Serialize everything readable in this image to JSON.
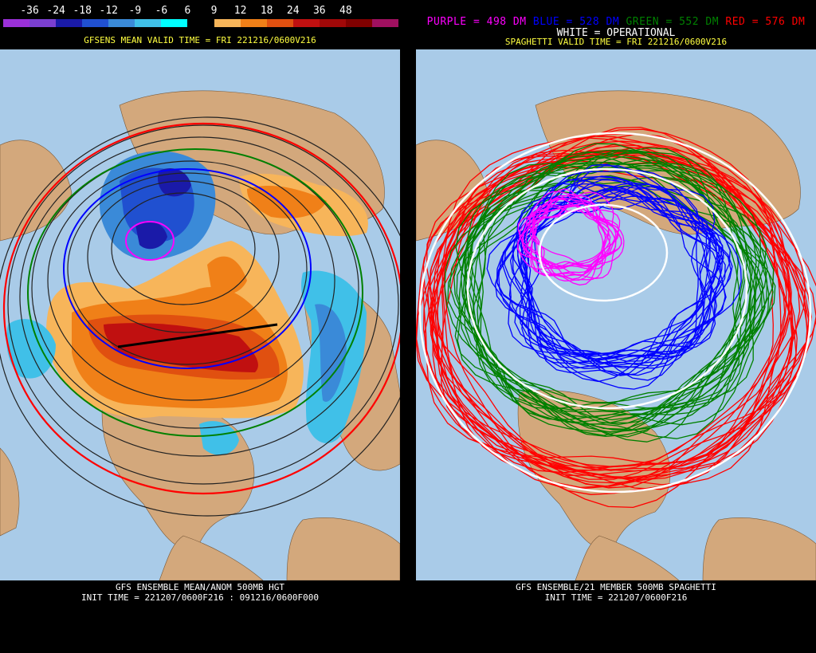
{
  "left": {
    "scale_labels": [
      "-36",
      "-24",
      "-18",
      "-12",
      "-9",
      "-6",
      "6",
      "9",
      "12",
      "18",
      "24",
      "36",
      "48"
    ],
    "scale_colors": [
      "#9b30d8",
      "#7b3fd0",
      "#1a1aa8",
      "#2050d0",
      "#3a8ad8",
      "#40c0e8",
      "#00ffff",
      "#000000",
      "#f7b55a",
      "#f08018",
      "#e05010",
      "#c01010",
      "#a00808",
      "#800000",
      "#a01060"
    ],
    "header": "GFSENS MEAN VALID TIME = FRI 221216/0600V216",
    "footer_line1": "GFS ENSEMBLE MEAN/ANOM 500MB HGT",
    "footer_line2": "INIT TIME = 221207/0600F216 : 091216/0600F000"
  },
  "right": {
    "legend_purple": "PURPLE = 498 DM",
    "legend_blue": "BLUE = 528 DM",
    "legend_green": "GREEN = 552 DM",
    "legend_red": "RED = 576 DM",
    "legend_white": "WHITE = OPERATIONAL",
    "header": "SPAGHETTI VALID TIME = FRI 221216/0600V216",
    "footer_line1": "GFS ENSEMBLE/21 MEMBER 500MB SPAGHETTI",
    "footer_line2": "INIT TIME = 221207/0600F216"
  },
  "colors": {
    "ocean": "#a9cbe8",
    "land": "#d3a87c",
    "purple": "#ff00ff",
    "blue": "#0000ff",
    "green": "#008000",
    "red": "#ff0000",
    "white": "#ffffff"
  }
}
